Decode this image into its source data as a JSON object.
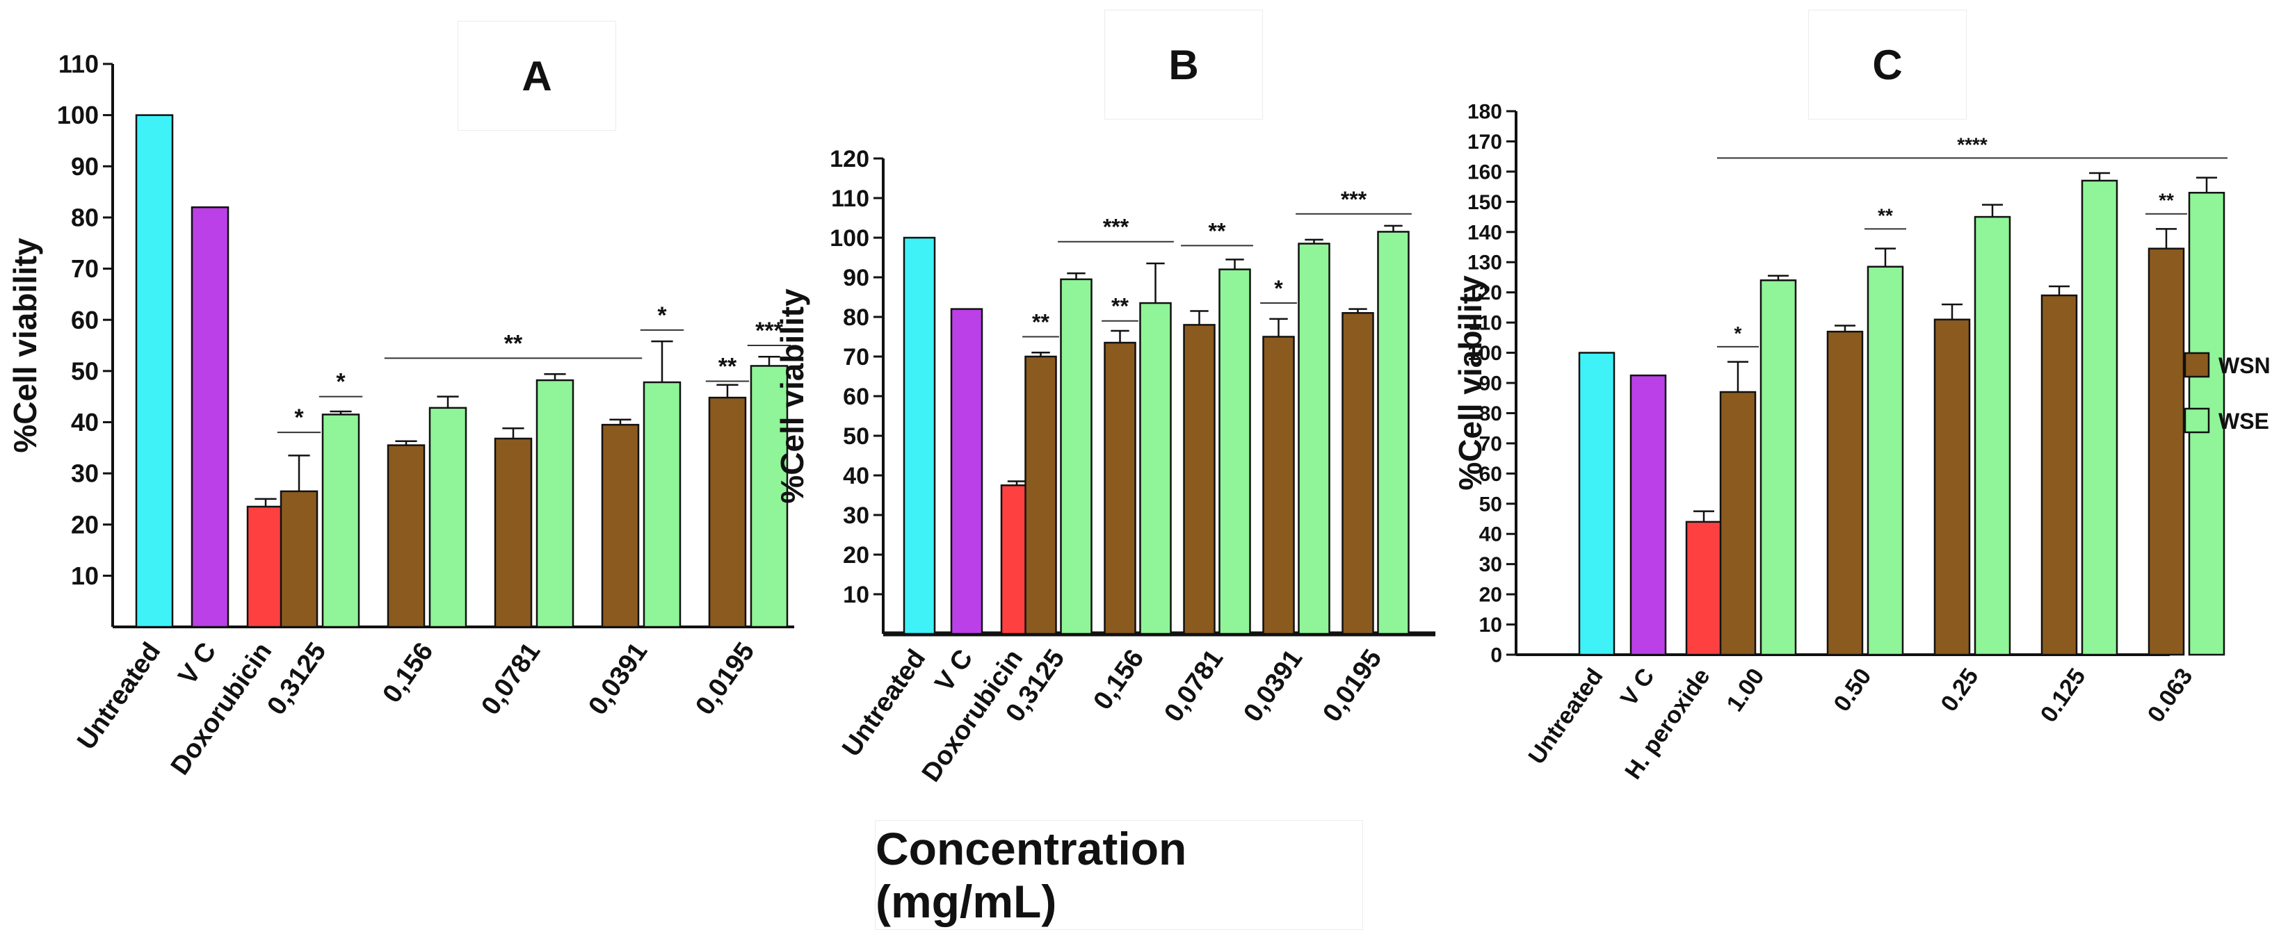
{
  "x_axis_title": "Concentration (mg/mL)",
  "colors": {
    "untreated": "#3ef2f8",
    "vc": "#bb40e8",
    "control": "#ff4040",
    "wsn": "#8b5a1e",
    "wse": "#8ff598"
  },
  "legend": [
    {
      "name": "WSN",
      "color": "#8b5a1e"
    },
    {
      "name": "WSE",
      "color": "#8ff598"
    }
  ],
  "chart_data": [
    {
      "panel": "A",
      "type": "bar",
      "ylabel": "%Cell viability",
      "ylim": [
        0,
        110
      ],
      "yticks": [
        10,
        20,
        30,
        40,
        50,
        60,
        70,
        80,
        90,
        100,
        110
      ],
      "controls": [
        {
          "label": "Untreated",
          "value": 100,
          "err": 0
        },
        {
          "label": "V C",
          "value": 82,
          "err": 0
        },
        {
          "label": "Doxorubicin",
          "value": 23.5,
          "err": 1.5
        }
      ],
      "groups": [
        "0,3125",
        "0,156",
        "0,0781",
        "0,0391",
        "0,0195"
      ],
      "series": [
        {
          "name": "WSN",
          "values": [
            26.5,
            35.5,
            36.8,
            39.5,
            44.8
          ],
          "err": [
            7,
            0.8,
            2,
            1,
            2.5
          ]
        },
        {
          "name": "WSE",
          "values": [
            41.5,
            42.8,
            48.2,
            47.8,
            51
          ],
          "err": [
            0.6,
            2.2,
            1.2,
            8,
            1.8
          ]
        }
      ],
      "annotations": [
        {
          "text": "*",
          "from": [
            0,
            "WSN"
          ],
          "to": [
            0,
            "WSN"
          ],
          "y": 38
        },
        {
          "text": "*",
          "from": [
            0,
            "WSE"
          ],
          "to": [
            0,
            "WSE"
          ],
          "y": 45
        },
        {
          "text": "**",
          "from": [
            1,
            "WSN"
          ],
          "to": [
            3,
            "WSN"
          ],
          "y": 52.5
        },
        {
          "text": "*",
          "from": [
            3,
            "WSE"
          ],
          "to": [
            3,
            "WSE"
          ],
          "y": 58
        },
        {
          "text": "**",
          "from": [
            4,
            "WSN"
          ],
          "to": [
            4,
            "WSN"
          ],
          "y": 48
        },
        {
          "text": "***",
          "from": [
            4,
            "WSE"
          ],
          "to": [
            4,
            "WSE"
          ],
          "y": 55
        }
      ]
    },
    {
      "panel": "B",
      "type": "bar",
      "ylabel": "%Cell viability",
      "ylim": [
        0,
        120
      ],
      "yticks": [
        10,
        20,
        30,
        40,
        50,
        60,
        70,
        80,
        90,
        100,
        110,
        120
      ],
      "controls": [
        {
          "label": "Untreated",
          "value": 100,
          "err": 0
        },
        {
          "label": "V C",
          "value": 82,
          "err": 0
        },
        {
          "label": "Doxorubicin",
          "value": 37.5,
          "err": 1
        }
      ],
      "groups": [
        "0,3125",
        "0,156",
        "0,0781",
        "0,0391",
        "0,0195"
      ],
      "series": [
        {
          "name": "WSN",
          "values": [
            70,
            73.5,
            78,
            75,
            81
          ],
          "err": [
            1,
            3,
            3.5,
            4.5,
            1
          ]
        },
        {
          "name": "WSE",
          "values": [
            89.5,
            83.5,
            92,
            98.5,
            101.5
          ],
          "err": [
            1.5,
            10,
            2.5,
            1,
            1.5
          ]
        }
      ],
      "annotations": [
        {
          "text": "**",
          "from": [
            0,
            "WSN"
          ],
          "to": [
            0,
            "WSN"
          ],
          "y": 75
        },
        {
          "text": "***",
          "from": [
            0,
            "WSE"
          ],
          "to": [
            1,
            "WSE"
          ],
          "y": 99
        },
        {
          "text": "**",
          "from": [
            1,
            "WSN"
          ],
          "to": [
            1,
            "WSN"
          ],
          "y": 79
        },
        {
          "text": "**",
          "from": [
            2,
            "WSN"
          ],
          "to": [
            2,
            "WSE"
          ],
          "y": 98
        },
        {
          "text": "*",
          "from": [
            3,
            "WSN"
          ],
          "to": [
            3,
            "WSN"
          ],
          "y": 83.5
        },
        {
          "text": "***",
          "from": [
            3,
            "WSE"
          ],
          "to": [
            4,
            "WSE"
          ],
          "y": 106
        }
      ]
    },
    {
      "panel": "C",
      "type": "bar",
      "ylabel": "%Cell viability",
      "ylim": [
        0,
        180
      ],
      "yticks": [
        0,
        10,
        20,
        30,
        40,
        50,
        60,
        70,
        80,
        90,
        100,
        110,
        120,
        130,
        140,
        150,
        160,
        170,
        180
      ],
      "controls": [
        {
          "label": "Untreated",
          "value": 100,
          "err": 0
        },
        {
          "label": "V C",
          "value": 92.5,
          "err": 0
        },
        {
          "label": "H. peroxide",
          "value": 44,
          "err": 3.5
        }
      ],
      "groups": [
        "1.00",
        "0.50",
        "0.25",
        "0.125",
        "0.063"
      ],
      "series": [
        {
          "name": "WSN",
          "values": [
            87,
            107,
            111,
            119,
            134.5
          ],
          "err": [
            10,
            2,
            5,
            3,
            6.5
          ]
        },
        {
          "name": "WSE",
          "values": [
            124,
            128.5,
            145,
            157,
            153
          ],
          "err": [
            1.5,
            6,
            4,
            2.5,
            5
          ]
        }
      ],
      "annotations": [
        {
          "text": "****",
          "from": [
            0,
            "WSN"
          ],
          "to": [
            4,
            "WSE"
          ],
          "y": 164.5
        },
        {
          "text": "*",
          "from": [
            0,
            "WSN"
          ],
          "to": [
            0,
            "WSN"
          ],
          "y": 102
        },
        {
          "text": "**",
          "from": [
            1,
            "WSE"
          ],
          "to": [
            1,
            "WSE"
          ],
          "y": 141
        },
        {
          "text": "**",
          "from": [
            4,
            "WSN"
          ],
          "to": [
            4,
            "WSN"
          ],
          "y": 146
        }
      ]
    }
  ]
}
